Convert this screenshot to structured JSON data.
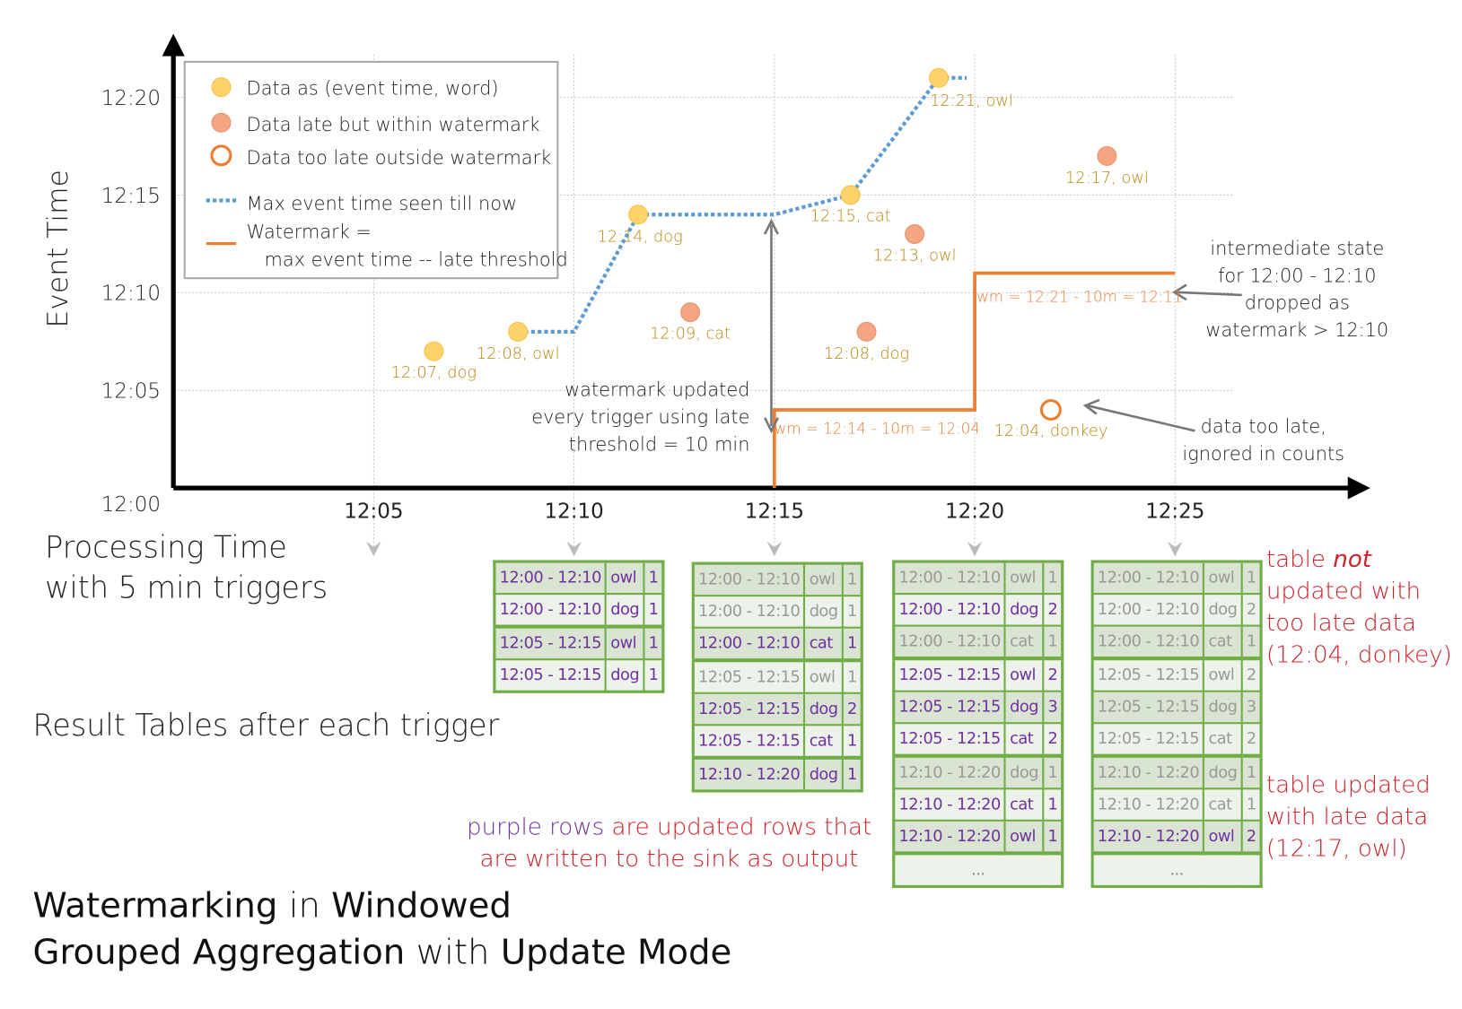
{
  "title": {
    "parts": [
      {
        "text": "Watermarking",
        "bold": true
      },
      {
        "text": " in ",
        "bold": false
      },
      {
        "text": "Windowed",
        "bold": true
      }
    ],
    "parts2": [
      {
        "text": "Grouped Aggregation",
        "bold": true
      },
      {
        "text": " with ",
        "bold": false
      },
      {
        "text": "Update Mode",
        "bold": true
      }
    ]
  },
  "axes": {
    "y_label": "Event Time",
    "x_label_line1": "Processing Time",
    "x_label_line2": "with 5 min triggers",
    "y_ticks": [
      "12:00",
      "12:05",
      "12:10",
      "12:15",
      "12:20"
    ],
    "x_ticks": [
      "12:05",
      "12:10",
      "12:15",
      "12:20",
      "12:25"
    ]
  },
  "legend": {
    "data": "Data as (event time, word)",
    "late": "Data late but within watermark",
    "too_late": "Data too late outside watermark",
    "max_event": "Max event time seen till now",
    "watermark_1": "Watermark =",
    "watermark_2": "max event time -- late threshold"
  },
  "colors": {
    "on_time": "#fdd46b",
    "late": "#f4a582",
    "too_late": "#ed7d31",
    "max_line": "#5b9bd5",
    "watermark": "#ed7d31",
    "grid": "#c8c8c8",
    "table_border": "#70ad47",
    "updated": "#7030a0",
    "note": "#d0202a",
    "point_label": "#b8860b"
  },
  "points": [
    {
      "label": "12:07, dog",
      "processing": "12:06:30",
      "event": "12:07",
      "kind": "on_time"
    },
    {
      "label": "12:08, owl",
      "processing": "12:08:36",
      "event": "12:08",
      "kind": "on_time"
    },
    {
      "label": "12:14, dog",
      "processing": "12:11:36",
      "event": "12:14",
      "kind": "on_time"
    },
    {
      "label": "12:09, cat",
      "processing": "12:12:54",
      "event": "12:09",
      "kind": "late"
    },
    {
      "label": "12:15, cat",
      "processing": "12:16:54",
      "event": "12:15",
      "kind": "on_time"
    },
    {
      "label": "12:08, dog",
      "processing": "12:17:18",
      "event": "12:08",
      "kind": "late"
    },
    {
      "label": "12:13, owl",
      "processing": "12:18:30",
      "event": "12:13",
      "kind": "late"
    },
    {
      "label": "12:21, owl",
      "processing": "12:19:06",
      "event": "12:21",
      "kind": "on_time"
    },
    {
      "label": "12:04, donkey",
      "processing": "12:21:54",
      "event": "12:04",
      "kind": "too_late"
    },
    {
      "label": "12:17, owl",
      "processing": "12:23:18",
      "event": "12:17",
      "kind": "late"
    }
  ],
  "max_event_line": [
    [
      "12:08:36",
      "12:08"
    ],
    [
      "12:10",
      "12:08"
    ],
    [
      "12:11:36",
      "12:14"
    ],
    [
      "12:15",
      "12:14"
    ],
    [
      "12:16:54",
      "12:15"
    ],
    [
      "12:19:06",
      "12:21"
    ],
    [
      "12:19:48",
      "12:21"
    ]
  ],
  "watermark_line": [
    [
      "12:15",
      "12:00"
    ],
    [
      "12:15",
      "12:04"
    ],
    [
      "12:20",
      "12:04"
    ],
    [
      "12:20",
      "12:11"
    ],
    [
      "12:25",
      "12:11"
    ]
  ],
  "annotations": {
    "wm1": "wm = 12:14 - 10m = 12:04",
    "wm2": "wm = 12:21 - 10m = 12:11",
    "wm_updated": [
      "watermark updated",
      "every trigger using late",
      "threshold = 10 min"
    ],
    "intermediate": [
      "intermediate state",
      "for 12:00 - 12:10",
      "dropped as",
      "watermark > 12:10"
    ],
    "too_late": [
      "data too late,",
      "ignored in counts"
    ]
  },
  "result_tables_label": "Result Tables after each trigger",
  "tables": [
    {
      "rows": [
        {
          "window": "12:00 - 12:10",
          "word": "owl",
          "count": "1",
          "updated": true
        },
        {
          "window": "12:00 - 12:10",
          "word": "dog",
          "count": "1",
          "updated": true
        },
        {
          "window": "12:05 - 12:15",
          "word": "owl",
          "count": "1",
          "updated": true,
          "group": true
        },
        {
          "window": "12:05 - 12:15",
          "word": "dog",
          "count": "1",
          "updated": true
        }
      ]
    },
    {
      "rows": [
        {
          "window": "12:00 - 12:10",
          "word": "owl",
          "count": "1",
          "updated": false
        },
        {
          "window": "12:00 - 12:10",
          "word": "dog",
          "count": "1",
          "updated": false
        },
        {
          "window": "12:00 - 12:10",
          "word": "cat",
          "count": "1",
          "updated": true
        },
        {
          "window": "12:05 - 12:15",
          "word": "owl",
          "count": "1",
          "updated": false,
          "group": true
        },
        {
          "window": "12:05 - 12:15",
          "word": "dog",
          "count": "2",
          "updated": true
        },
        {
          "window": "12:05 - 12:15",
          "word": "cat",
          "count": "1",
          "updated": true
        },
        {
          "window": "12:10 - 12:20",
          "word": "dog",
          "count": "1",
          "updated": true,
          "group": true
        }
      ]
    },
    {
      "rows": [
        {
          "window": "12:00 - 12:10",
          "word": "owl",
          "count": "1",
          "updated": false
        },
        {
          "window": "12:00 - 12:10",
          "word": "dog",
          "count": "2",
          "updated": true
        },
        {
          "window": "12:00 - 12:10",
          "word": "cat",
          "count": "1",
          "updated": false
        },
        {
          "window": "12:05 - 12:15",
          "word": "owl",
          "count": "2",
          "updated": true,
          "group": true
        },
        {
          "window": "12:05 - 12:15",
          "word": "dog",
          "count": "3",
          "updated": true
        },
        {
          "window": "12:05 - 12:15",
          "word": "cat",
          "count": "2",
          "updated": true
        },
        {
          "window": "12:10 - 12:20",
          "word": "dog",
          "count": "1",
          "updated": false,
          "group": true
        },
        {
          "window": "12:10 - 12:20",
          "word": "cat",
          "count": "1",
          "updated": true
        },
        {
          "window": "12:10 - 12:20",
          "word": "owl",
          "count": "1",
          "updated": true
        }
      ],
      "more": "..."
    },
    {
      "rows": [
        {
          "window": "12:00 - 12:10",
          "word": "owl",
          "count": "1",
          "updated": false
        },
        {
          "window": "12:00 - 12:10",
          "word": "dog",
          "count": "2",
          "updated": false
        },
        {
          "window": "12:00 - 12:10",
          "word": "cat",
          "count": "1",
          "updated": false
        },
        {
          "window": "12:05 - 12:15",
          "word": "owl",
          "count": "2",
          "updated": false,
          "group": true
        },
        {
          "window": "12:05 - 12:15",
          "word": "dog",
          "count": "3",
          "updated": false
        },
        {
          "window": "12:05 - 12:15",
          "word": "cat",
          "count": "2",
          "updated": false
        },
        {
          "window": "12:10 - 12:20",
          "word": "dog",
          "count": "1",
          "updated": false,
          "group": true
        },
        {
          "window": "12:10 - 12:20",
          "word": "cat",
          "count": "1",
          "updated": false
        },
        {
          "window": "12:10 - 12:20",
          "word": "owl",
          "count": "2",
          "updated": true
        }
      ],
      "more": "..."
    }
  ],
  "notes": {
    "purple_rows": "purple rows",
    "purple_rest": " are updated rows that",
    "purple_line2": "are written to the sink as output",
    "not_updated": {
      "a": "table ",
      "b": "not",
      "c": "updated with",
      "d": "too late data",
      "e": "(12:04, donkey)"
    },
    "updated": [
      "table updated",
      "with late data",
      "(12:17, owl)"
    ]
  }
}
